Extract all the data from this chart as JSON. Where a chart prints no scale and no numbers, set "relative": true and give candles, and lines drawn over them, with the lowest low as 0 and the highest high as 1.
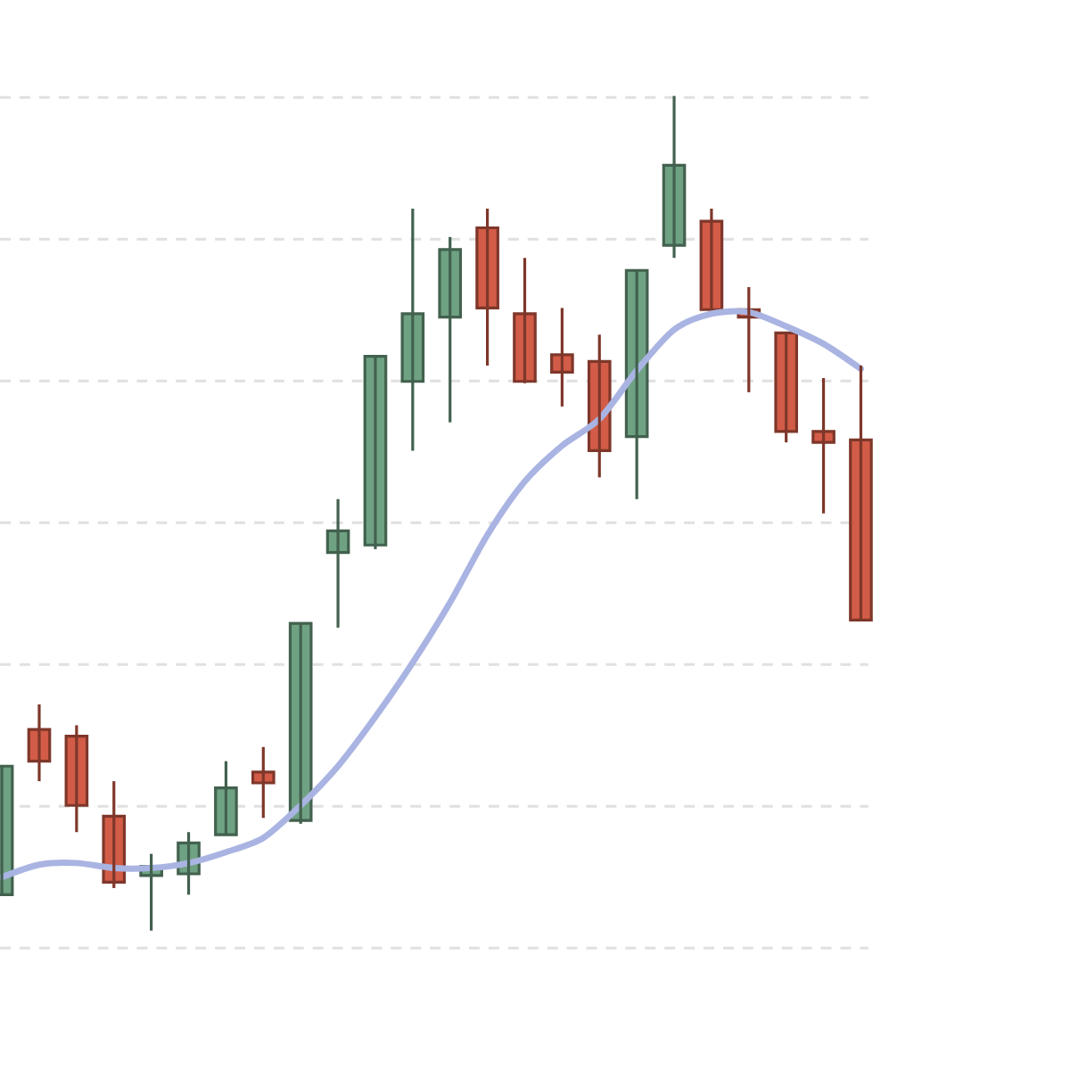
{
  "chart_data": {
    "type": "candlestick",
    "relative": true,
    "grid": "y",
    "categories": [
      null,
      null,
      null,
      null,
      null,
      null,
      null,
      null,
      null,
      null,
      null,
      null,
      null,
      null,
      null,
      null,
      null,
      null,
      null,
      null,
      null,
      null,
      null,
      null
    ],
    "ohlc": [
      [
        0.043,
        0.197,
        0.043,
        0.197
      ],
      [
        0.241,
        0.271,
        0.179,
        0.203
      ],
      [
        0.233,
        0.246,
        0.118,
        0.15
      ],
      [
        0.137,
        0.179,
        0.051,
        0.058
      ],
      [
        0.066,
        0.092,
        0.0,
        0.077
      ],
      [
        0.068,
        0.118,
        0.043,
        0.105
      ],
      [
        0.115,
        0.203,
        0.115,
        0.171
      ],
      [
        0.19,
        0.22,
        0.135,
        0.177
      ],
      [
        0.132,
        0.368,
        0.128,
        0.368
      ],
      [
        0.453,
        0.517,
        0.363,
        0.479
      ],
      [
        0.462,
        0.688,
        0.457,
        0.688
      ],
      [
        0.658,
        0.865,
        0.575,
        0.739
      ],
      [
        0.735,
        0.831,
        0.609,
        0.816
      ],
      [
        0.842,
        0.865,
        0.677,
        0.746
      ],
      [
        0.739,
        0.806,
        0.656,
        0.658
      ],
      [
        0.69,
        0.746,
        0.628,
        0.669
      ],
      [
        0.682,
        0.714,
        0.543,
        0.575
      ],
      [
        0.592,
        0.791,
        0.517,
        0.791
      ],
      [
        0.821,
        1.0,
        0.806,
        0.917
      ],
      [
        0.85,
        0.865,
        0.744,
        0.744
      ],
      [
        0.744,
        0.771,
        0.645,
        0.735
      ],
      [
        0.716,
        0.716,
        0.585,
        0.598
      ],
      [
        0.598,
        0.662,
        0.5,
        0.585
      ],
      [
        0.588,
        0.677,
        0.372,
        0.372
      ]
    ],
    "colors": [
      "#6fa283",
      "#d25c47",
      "#d25c47",
      "#d25c47",
      "#6fa283",
      "#6fa283",
      "#6fa283",
      "#d25c47",
      "#6fa283",
      "#6fa283",
      "#6fa283",
      "#6fa283",
      "#6fa283",
      "#d25c47",
      "#d25c47",
      "#d25c47",
      "#d25c47",
      "#6fa283",
      "#6fa283",
      "#d25c47",
      "#d25c47",
      "#d25c47",
      "#d25c47",
      "#d25c47"
    ],
    "series": [
      {
        "type": "line",
        "color": "#a9b4e2",
        "values": [
          0.064,
          0.079,
          0.081,
          0.075,
          0.075,
          0.081,
          0.094,
          0.111,
          0.15,
          0.197,
          0.256,
          0.321,
          0.393,
          0.474,
          0.538,
          0.581,
          0.613,
          0.671,
          0.72,
          0.739,
          0.741,
          0.724,
          0.703,
          0.673
        ]
      }
    ]
  }
}
